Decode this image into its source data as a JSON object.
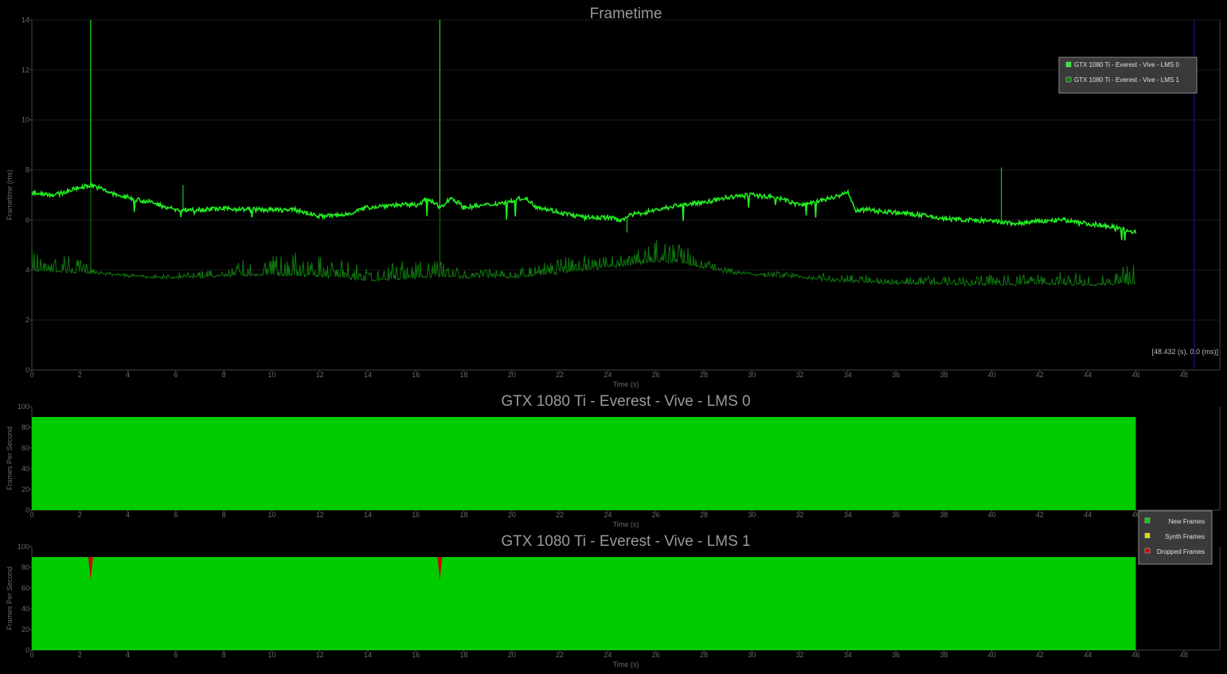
{
  "chart_data": [
    {
      "type": "line",
      "title": "Frametime",
      "xlabel": "Time (s)",
      "ylabel": "Frametime (ms)",
      "xlim": [
        0,
        49.5
      ],
      "ylim": [
        0,
        14
      ],
      "xticks": [
        0,
        2,
        4,
        6,
        8,
        10,
        12,
        14,
        16,
        18,
        20,
        22,
        24,
        26,
        28,
        30,
        32,
        34,
        36,
        38,
        40,
        42,
        44,
        46,
        48
      ],
      "yticks": [
        0,
        2,
        4,
        6,
        8,
        10,
        12,
        14
      ],
      "grid": true,
      "legend_position": "top-right",
      "cursor": {
        "x": 48.432,
        "label": "[48.432 (s), 0.0 (ms)]"
      },
      "series": [
        {
          "name": "GTX 1080 Ti - Everest - Vive - LMS 0",
          "color": "#22ee22",
          "x": [
            0,
            1,
            2,
            2.5,
            3.5,
            5,
            6,
            8,
            10,
            11,
            12,
            13,
            14,
            15,
            16,
            16.5,
            17,
            17.5,
            18,
            19,
            20,
            20.5,
            21,
            22,
            23,
            24,
            24.5,
            25,
            26,
            27,
            28,
            29,
            30,
            31,
            32,
            33,
            34,
            34.3,
            35,
            36,
            37,
            38,
            39,
            40,
            41,
            42,
            43,
            44,
            45,
            46
          ],
          "y": [
            7.1,
            7.0,
            7.3,
            7.4,
            7.0,
            6.7,
            6.4,
            6.45,
            6.4,
            6.4,
            6.15,
            6.2,
            6.5,
            6.6,
            6.6,
            6.85,
            6.5,
            6.9,
            6.5,
            6.6,
            6.75,
            6.9,
            6.55,
            6.3,
            6.1,
            6.1,
            6.0,
            6.2,
            6.4,
            6.6,
            6.7,
            6.9,
            7.0,
            6.9,
            6.6,
            6.8,
            7.1,
            6.4,
            6.4,
            6.3,
            6.2,
            6.05,
            6.0,
            5.95,
            5.85,
            5.95,
            6.0,
            5.85,
            5.75,
            5.5
          ],
          "spikes": [
            {
              "x": 2.45,
              "y": 14.0
            },
            {
              "x": 6.3,
              "y": 7.4
            },
            {
              "x": 17.0,
              "y": 14.0
            },
            {
              "x": 24.8,
              "y": 5.5
            },
            {
              "x": 40.4,
              "y": 8.1
            }
          ]
        },
        {
          "name": "GTX 1080 Ti - Everest - Vive - LMS 1",
          "color": "#0f7a0f",
          "x": [
            0,
            1,
            2,
            3,
            4,
            5,
            6,
            8,
            9,
            10,
            11,
            12,
            13,
            14,
            15,
            16,
            17,
            18,
            19,
            20,
            21,
            22,
            23,
            24,
            25,
            26,
            27,
            28,
            29,
            30,
            31,
            32,
            33,
            34,
            35,
            36,
            37,
            38,
            39,
            40,
            41,
            42,
            43,
            44,
            45,
            46
          ],
          "y": [
            4.0,
            3.95,
            3.9,
            3.85,
            3.75,
            3.7,
            3.7,
            3.75,
            3.8,
            3.8,
            3.8,
            3.75,
            3.7,
            3.55,
            3.65,
            3.7,
            3.75,
            3.7,
            3.75,
            3.7,
            3.8,
            3.9,
            4.0,
            4.1,
            4.2,
            4.35,
            4.3,
            4.1,
            3.9,
            3.8,
            3.75,
            3.7,
            3.6,
            3.55,
            3.5,
            3.45,
            3.45,
            3.45,
            3.4,
            3.45,
            3.4,
            3.45,
            3.45,
            3.4,
            3.45,
            3.5
          ],
          "noise": [
            0.9,
            0.9,
            0.5,
            0.1,
            0.1,
            0.1,
            0.2,
            0.3,
            0.8,
            0.9,
            0.9,
            0.8,
            0.7,
            0.6,
            0.7,
            0.7,
            0.6,
            0.3,
            0.3,
            0.3,
            0.4,
            0.6,
            0.6,
            0.5,
            0.5,
            0.9,
            0.8,
            0.4,
            0.2,
            0.1,
            0.2,
            0.2,
            0.3,
            0.3,
            0.3,
            0.2,
            0.3,
            0.3,
            0.3,
            0.4,
            0.4,
            0.4,
            0.5,
            0.5,
            0.5,
            0.9
          ],
          "spikes": [
            {
              "x": 2.45,
              "y": 14.0
            },
            {
              "x": 17.0,
              "y": 14.0
            }
          ]
        }
      ]
    },
    {
      "type": "area",
      "title": "GTX 1080 Ti - Everest - Vive - LMS 0",
      "xlabel": "Time (s)",
      "ylabel": "Frames Per Second",
      "xlim": [
        0,
        49.5
      ],
      "ylim": [
        0,
        100
      ],
      "xticks": [
        0,
        2,
        4,
        6,
        8,
        10,
        12,
        14,
        16,
        18,
        20,
        22,
        24,
        26,
        28,
        30,
        32,
        34,
        36,
        38,
        40,
        42,
        44,
        46,
        48
      ],
      "yticks": [
        0,
        20,
        40,
        60,
        80,
        100
      ],
      "series": [
        {
          "name": "New Frames",
          "color": "#00cc00",
          "x": [
            0,
            46
          ],
          "values": [
            90,
            90
          ]
        },
        {
          "name": "Synth Frames",
          "color": "#dddd00",
          "x": [
            0,
            46
          ],
          "values": [
            0,
            0
          ]
        },
        {
          "name": "Dropped Frames",
          "color": "#cc0000",
          "x": [
            0,
            46
          ],
          "values": [
            0,
            0
          ]
        }
      ]
    },
    {
      "type": "area",
      "title": "GTX 1080 Ti - Everest - Vive - LMS 1",
      "xlabel": "Time (s)",
      "ylabel": "Frames Per Second",
      "xlim": [
        0,
        49.5
      ],
      "ylim": [
        0,
        100
      ],
      "xticks": [
        0,
        2,
        4,
        6,
        8,
        10,
        12,
        14,
        16,
        18,
        20,
        22,
        24,
        26,
        28,
        30,
        32,
        34,
        36,
        38,
        40,
        42,
        44,
        46,
        48
      ],
      "yticks": [
        0,
        20,
        40,
        60,
        80,
        100
      ],
      "legend_position": "right",
      "series": [
        {
          "name": "New Frames",
          "color": "#00cc00",
          "x": [
            0,
            46
          ],
          "values": [
            90,
            90
          ]
        },
        {
          "name": "Synth Frames",
          "color": "#dddd00",
          "x": [
            0,
            46
          ],
          "values": [
            0,
            0
          ]
        },
        {
          "name": "Dropped Frames",
          "color": "#cc0000",
          "x": [
            0,
            46
          ],
          "values": [
            0,
            0
          ],
          "events": [
            {
              "x": 2.45,
              "value": 22
            },
            {
              "x": 17.0,
              "value": 22
            }
          ]
        }
      ]
    }
  ]
}
